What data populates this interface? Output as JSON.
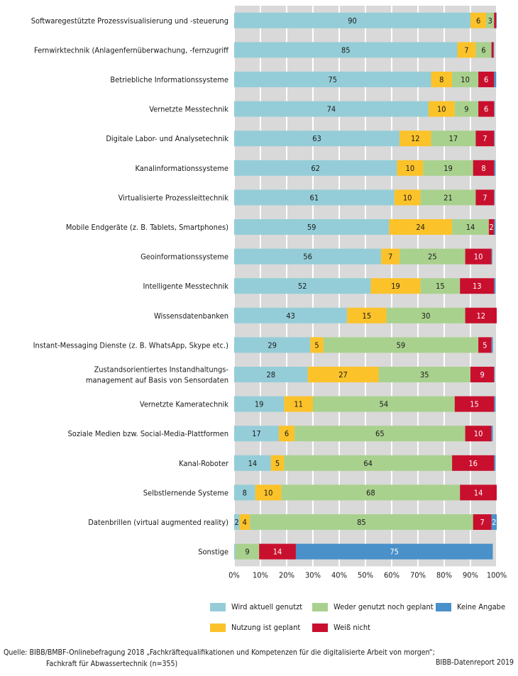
{
  "chart_data": {
    "type": "bar",
    "orientation": "horizontal",
    "stacked": true,
    "categories": [
      "Softwaregestützte Prozessvisualisierung  und -steuerung",
      "Fernwirktechnik (Anlagenfernüberwachung, -fernzugriff",
      "Betriebliche Informationssysteme",
      "Vernetzte Messtechnik",
      "Digitale Labor- und Analysetechnik",
      "Kanalinformationssysteme",
      "Virtualisierte Prozessleittechnik",
      "Mobile Endgeräte (z. B. Tablets, Smartphones)",
      "Geoinformationssysteme",
      "Intelligente Messtechnik",
      "Wissensdatenbanken",
      "Instant-Messaging Dienste (z. B. WhatsApp, Skype etc.)",
      "Zustandsorientiertes Instandhaltungs-\nmanagement auf Basis von Sensordaten",
      "Vernetzte Kameratechnik",
      "Soziale Medien bzw. Social-Media-Plattformen",
      "Kanal-Roboter",
      "Selbstlernende Systeme",
      "Datenbrillen (virtual augmented reality)",
      "Sonstige"
    ],
    "series": [
      {
        "name": "Wird aktuell genutzt",
        "color": "#94cdd8",
        "values": [
          90,
          85,
          75,
          74,
          63,
          62,
          61,
          59,
          56,
          52,
          43,
          29,
          28,
          19,
          17,
          14,
          8,
          2,
          0.5
        ]
      },
      {
        "name": "Nutzung ist geplant",
        "color": "#fbc22a",
        "values": [
          6,
          7,
          8,
          10,
          12,
          10,
          10,
          24,
          7,
          19,
          15,
          5,
          27,
          11,
          6,
          5,
          10,
          4,
          0
        ]
      },
      {
        "name": "Weder genutzt noch geplant",
        "color": "#a9d18e",
        "values": [
          3,
          6,
          10,
          9,
          17,
          19,
          21,
          14,
          25,
          15,
          30,
          59,
          35,
          54,
          65,
          64,
          68,
          85,
          9
        ]
      },
      {
        "name": "Weiß nicht",
        "color": "#c8102e",
        "values": [
          0.8,
          0.8,
          6,
          6,
          7,
          8,
          7,
          2,
          10,
          13,
          12,
          5,
          9,
          15,
          10,
          16,
          14,
          7,
          14
        ]
      },
      {
        "name": "Keine Angabe",
        "color": "#4a90c9",
        "values": [
          0.2,
          0.2,
          0.8,
          0.2,
          0.2,
          0.5,
          0.2,
          0.5,
          0.3,
          0.5,
          0.2,
          0.5,
          0.2,
          0.5,
          0.5,
          0.5,
          0.5,
          2,
          75
        ]
      }
    ],
    "labels": [
      [
        "90",
        "6",
        "3",
        "",
        ""
      ],
      [
        "85",
        "7",
        "6",
        "",
        ""
      ],
      [
        "75",
        "8",
        "10",
        "6",
        ""
      ],
      [
        "74",
        "10",
        "9",
        "6",
        ""
      ],
      [
        "63",
        "12",
        "17",
        "7",
        ""
      ],
      [
        "62",
        "10",
        "19",
        "8",
        ""
      ],
      [
        "61",
        "10",
        "21",
        "7",
        ""
      ],
      [
        "59",
        "24",
        "14",
        "2",
        ""
      ],
      [
        "56",
        "7",
        "25",
        "10",
        ""
      ],
      [
        "52",
        "19",
        "15",
        "13",
        ""
      ],
      [
        "43",
        "15",
        "30",
        "12",
        ""
      ],
      [
        "29",
        "5",
        "59",
        "5",
        ""
      ],
      [
        "28",
        "27",
        "35",
        "9",
        ""
      ],
      [
        "19",
        "11",
        "54",
        "15",
        ""
      ],
      [
        "17",
        "6",
        "65",
        "10",
        ""
      ],
      [
        "14",
        "5",
        "64",
        "16",
        ""
      ],
      [
        "8",
        "10",
        "68",
        "14",
        ""
      ],
      [
        "2",
        "4",
        "85",
        "7",
        "2"
      ],
      [
        "",
        "",
        "9",
        "14",
        "75"
      ]
    ],
    "xlim": [
      0,
      100
    ],
    "xticks": [
      "0%",
      "10%",
      "20%",
      "30%",
      "40%",
      "50%",
      "60%",
      "70%",
      "80%",
      "90%",
      "100%"
    ],
    "grid": true,
    "legend_placement": "bottom-right"
  },
  "legend": {
    "items": [
      {
        "label": "Wird aktuell genutzt",
        "color": "#94cdd8"
      },
      {
        "label": "Weder genutzt noch geplant",
        "color": "#a9d18e"
      },
      {
        "label": "Keine Angabe",
        "color": "#4a90c9"
      },
      {
        "label": "Nutzung ist geplant",
        "color": "#fbc22a"
      },
      {
        "label": "Weiß nicht",
        "color": "#c8102e"
      }
    ]
  },
  "source": {
    "line1": "Quelle: BIBB/BMBF-Onlinebefragung 2018 „Fachkräftequalifikationen und Kompetenzen für die digitalisierte Arbeit von morgen“;",
    "line2": "Fachkraft für Abwassertechnik (n=355)"
  },
  "credit": "BIBB-Datenreport 2019"
}
